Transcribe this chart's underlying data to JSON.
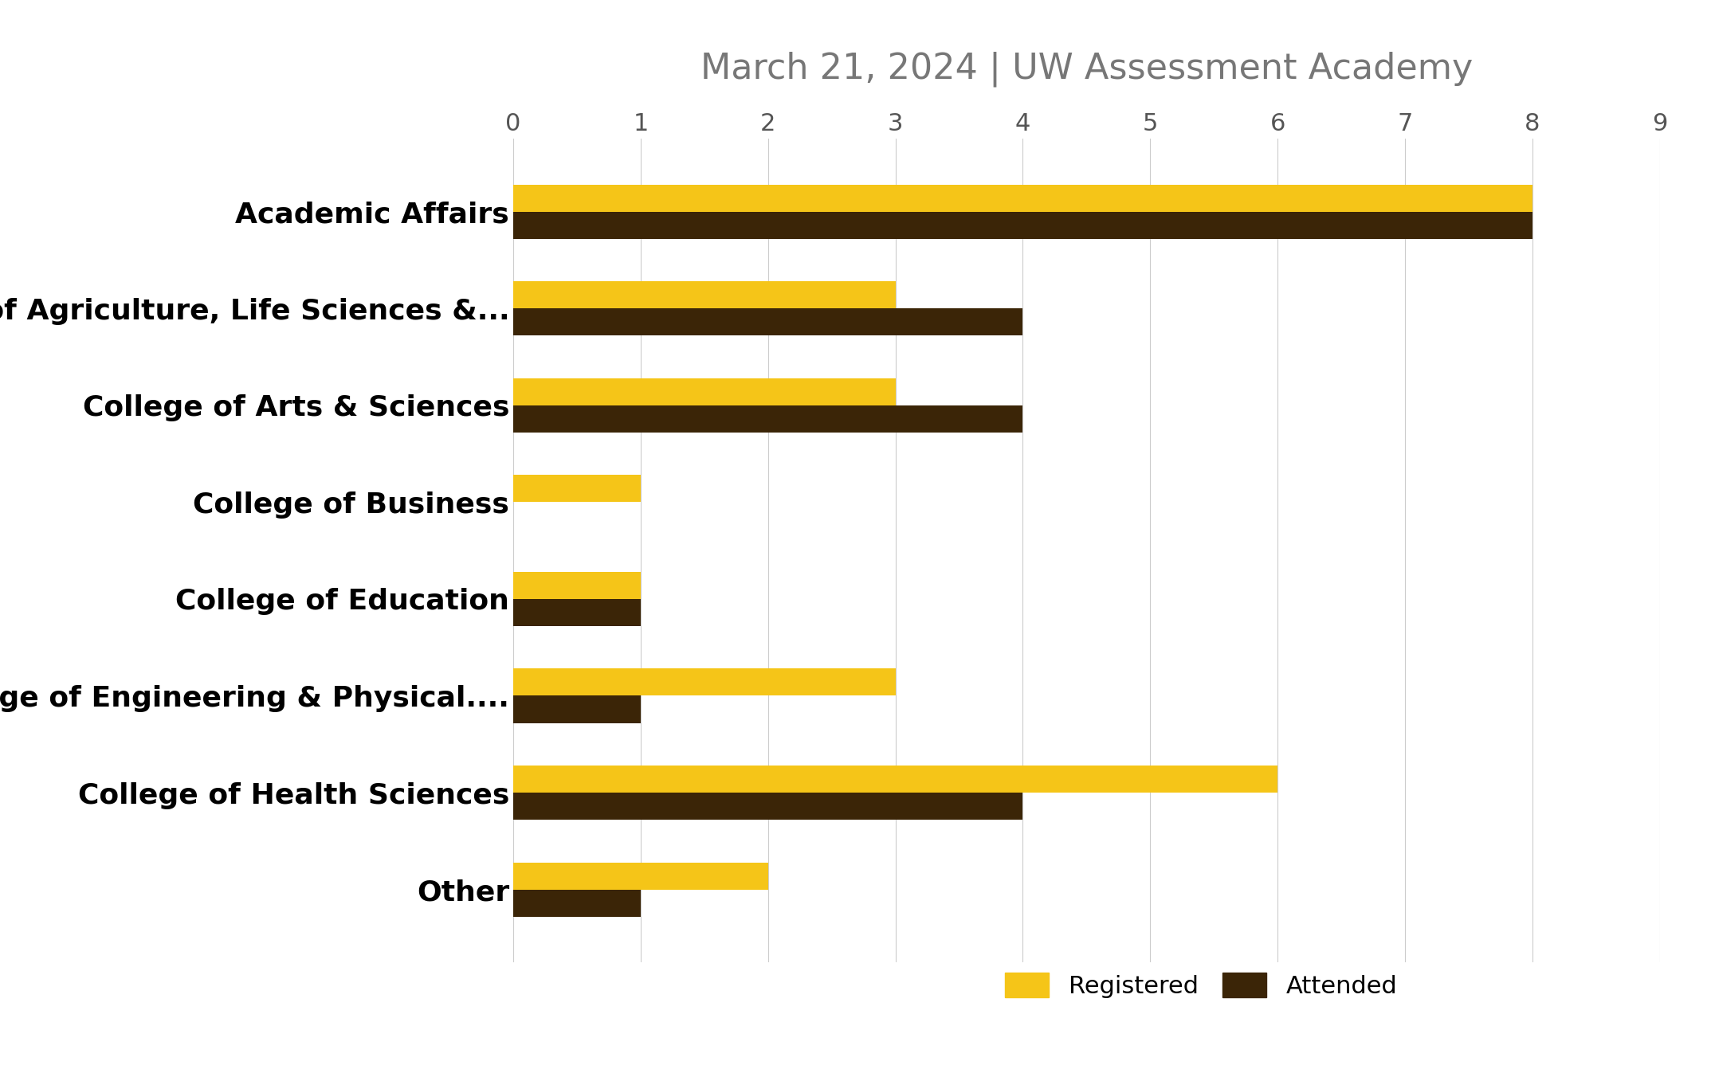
{
  "title": "March 21, 2024 | UW Assessment Academy",
  "categories": [
    "Academic Affairs",
    "College of Agriculture, Life Sciences &...",
    "College of Arts & Sciences",
    "College of Business",
    "College of Education",
    "College of Engineering & Physical....",
    "College of Health Sciences",
    "Other"
  ],
  "registered": [
    8,
    3,
    3,
    1,
    1,
    3,
    6,
    2
  ],
  "attended": [
    8,
    4,
    4,
    0,
    1,
    1,
    4,
    1
  ],
  "color_registered": "#F5C518",
  "color_attended": "#3B2507",
  "xlim": [
    0,
    9
  ],
  "xticks": [
    0,
    1,
    2,
    3,
    4,
    5,
    6,
    7,
    8,
    9
  ],
  "background_color": "#FFFFFF",
  "title_fontsize": 32,
  "label_fontsize": 26,
  "tick_fontsize": 22,
  "legend_fontsize": 22,
  "bar_height": 0.28
}
